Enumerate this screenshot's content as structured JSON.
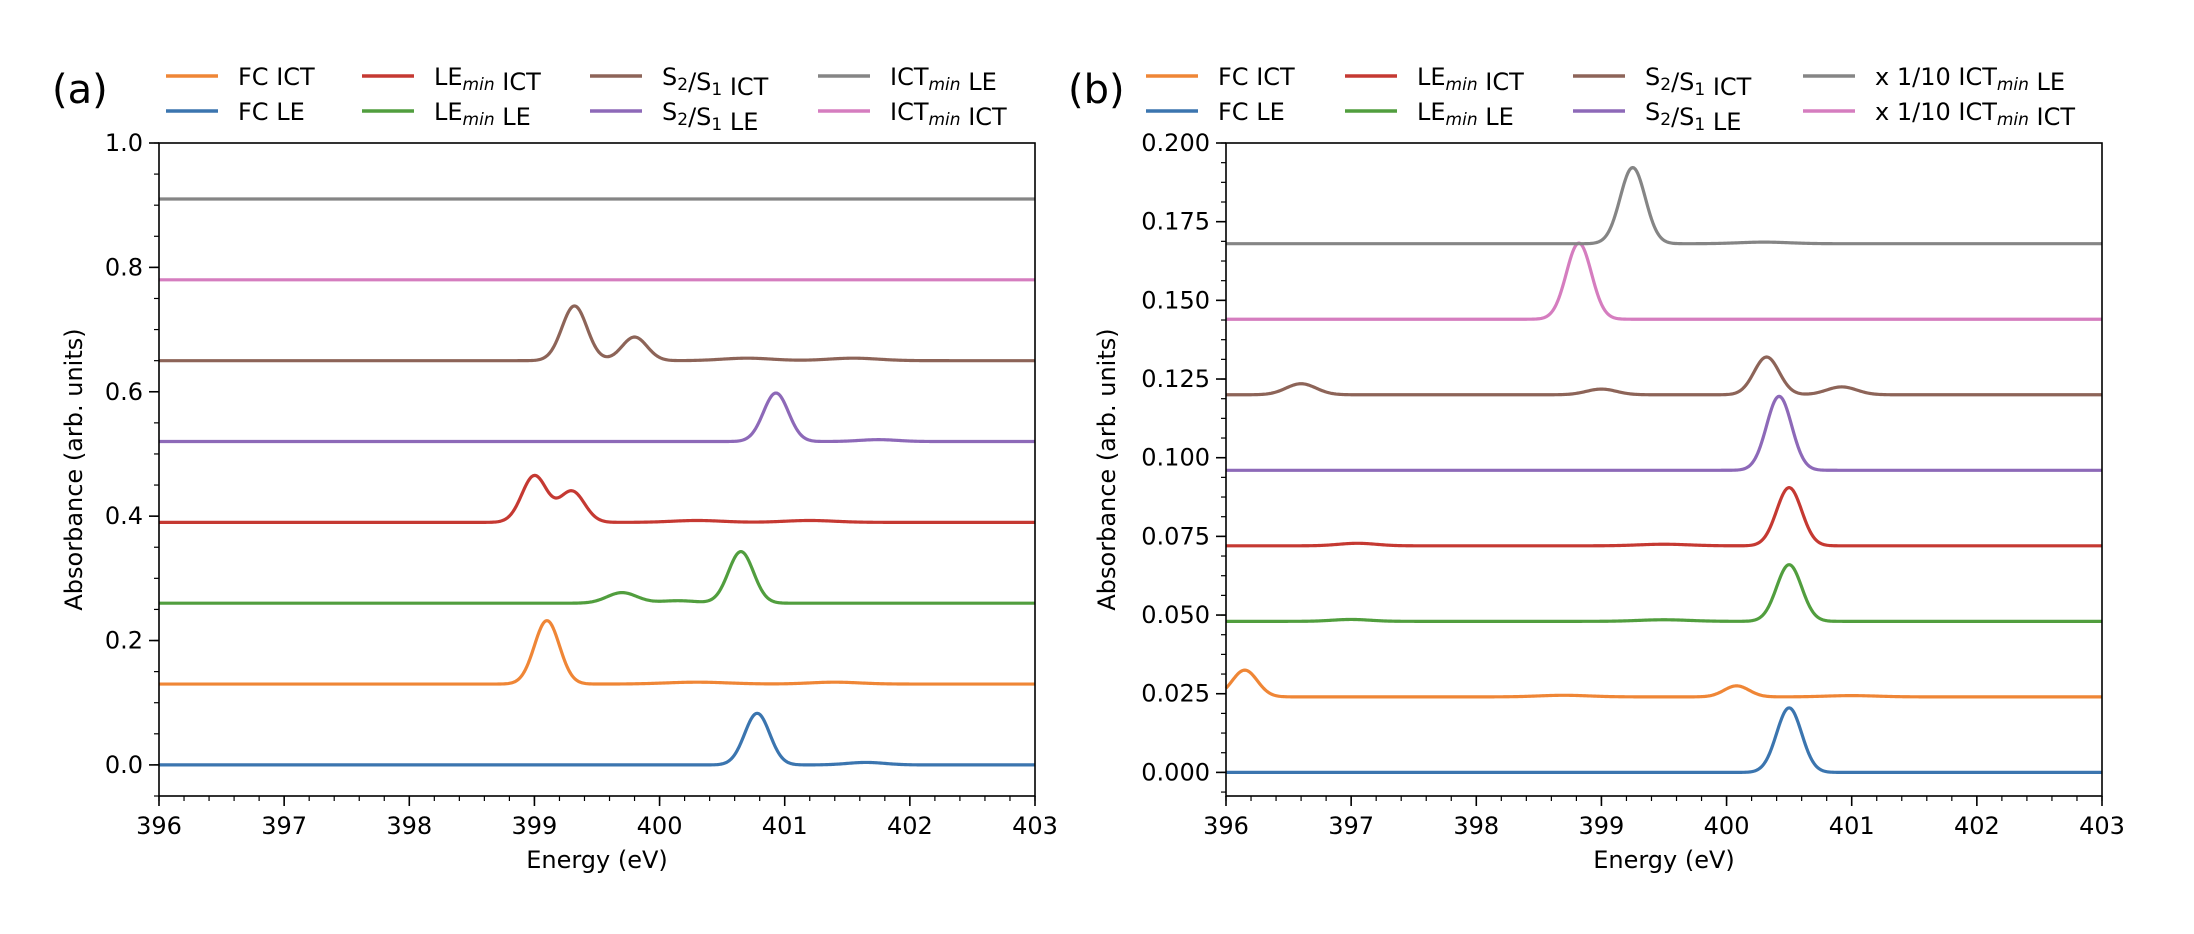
{
  "figure": {
    "colors": {
      "FC ICT": "#ef8636",
      "FC LE": "#3b75af",
      "LEmin ICT": "#c53932",
      "LEmin LE": "#519e3e",
      "S2/S1 ICT": "#8d6458",
      "S2/S1 LE": "#8d69b8",
      "ICTmin LE": "#858585",
      "ICTmin ICT": "#d57dbf"
    }
  },
  "chart_data": [
    {
      "type": "line",
      "panel_label": "(a)",
      "xlabel": "Energy (eV)",
      "ylabel": "Absorbance (arb. units)",
      "xlim": [
        396,
        403
      ],
      "ylim": [
        -0.05,
        1.0
      ],
      "x_ticks": [
        396,
        397,
        398,
        399,
        400,
        401,
        402,
        403
      ],
      "x_tick_labels": [
        "396",
        "397",
        "398",
        "399",
        "400",
        "401",
        "402",
        "403"
      ],
      "y_ticks": [
        0.0,
        0.2,
        0.4,
        0.6,
        0.8,
        1.0
      ],
      "y_tick_labels": [
        "0.0",
        "0.2",
        "0.4",
        "0.6",
        "0.8",
        "1.0"
      ],
      "legend": [
        {
          "key": "FC ICT",
          "text": "FC ICT"
        },
        {
          "key": "LEmin ICT",
          "text": "LEmin ICT"
        },
        {
          "key": "S2/S1 ICT",
          "text": "S2/S1 ICT"
        },
        {
          "key": "ICTmin LE",
          "text": "ICTmin LE"
        },
        {
          "key": "FC LE",
          "text": "FC LE"
        },
        {
          "key": "LEmin LE",
          "text": "LEmin LE"
        },
        {
          "key": "S2/S1 LE",
          "text": "S2/S1 LE"
        },
        {
          "key": "ICTmin ICT",
          "text": "ICTmin ICT"
        }
      ],
      "series": [
        {
          "name": "FC LE",
          "baseline": 0.0,
          "peaks": [
            [
              400.78,
              0.083,
              0.1
            ],
            [
              401.65,
              0.004,
              0.15
            ]
          ]
        },
        {
          "name": "FC ICT",
          "baseline": 0.13,
          "peaks": [
            [
              399.1,
              0.102,
              0.1
            ],
            [
              400.3,
              0.003,
              0.25
            ],
            [
              401.4,
              0.003,
              0.2
            ]
          ]
        },
        {
          "name": "LEmin LE",
          "baseline": 0.26,
          "peaks": [
            [
              399.7,
              0.017,
              0.12
            ],
            [
              400.15,
              0.004,
              0.15
            ],
            [
              400.65,
              0.083,
              0.1
            ]
          ]
        },
        {
          "name": "LEmin ICT",
          "baseline": 0.39,
          "peaks": [
            [
              399.0,
              0.075,
              0.1
            ],
            [
              399.3,
              0.05,
              0.1
            ],
            [
              400.3,
              0.003,
              0.2
            ],
            [
              401.2,
              0.003,
              0.2
            ]
          ]
        },
        {
          "name": "S2/S1 LE",
          "baseline": 0.52,
          "peaks": [
            [
              400.93,
              0.078,
              0.1
            ],
            [
              401.75,
              0.003,
              0.15
            ]
          ]
        },
        {
          "name": "S2/S1 ICT",
          "baseline": 0.65,
          "peaks": [
            [
              399.32,
              0.088,
              0.1
            ],
            [
              399.8,
              0.038,
              0.1
            ],
            [
              400.7,
              0.004,
              0.2
            ],
            [
              401.55,
              0.004,
              0.2
            ]
          ]
        },
        {
          "name": "ICTmin ICT",
          "baseline": 0.78,
          "peaks": []
        },
        {
          "name": "ICTmin LE",
          "baseline": 0.91,
          "peaks": []
        }
      ]
    },
    {
      "type": "line",
      "panel_label": "(b)",
      "xlabel": "Energy (eV)",
      "ylabel": "Absorbance (arb. units)",
      "xlim": [
        396,
        403
      ],
      "ylim": [
        -0.0075,
        0.2
      ],
      "x_ticks": [
        396,
        397,
        398,
        399,
        400,
        401,
        402,
        403
      ],
      "x_tick_labels": [
        "396",
        "397",
        "398",
        "399",
        "400",
        "401",
        "402",
        "403"
      ],
      "y_ticks": [
        0.0,
        0.025,
        0.05,
        0.075,
        0.1,
        0.125,
        0.15,
        0.175,
        0.2
      ],
      "y_tick_labels": [
        "0.000",
        "0.025",
        "0.050",
        "0.075",
        "0.100",
        "0.125",
        "0.150",
        "0.175",
        "0.200"
      ],
      "legend": [
        {
          "key": "FC ICT",
          "text": "FC ICT"
        },
        {
          "key": "LEmin ICT",
          "text": "LEmin ICT"
        },
        {
          "key": "S2/S1 ICT",
          "text": "S2/S1 ICT"
        },
        {
          "key": "ICTmin LE",
          "text": "x 1/10 ICTmin LE"
        },
        {
          "key": "FC LE",
          "text": "FC LE"
        },
        {
          "key": "LEmin LE",
          "text": "LEmin LE"
        },
        {
          "key": "S2/S1 LE",
          "text": "S2/S1 LE"
        },
        {
          "key": "ICTmin ICT",
          "text": "x 1/10 ICTmin ICT"
        }
      ],
      "series": [
        {
          "name": "FC LE",
          "baseline": 0.0,
          "peaks": [
            [
              400.5,
              0.0205,
              0.1
            ]
          ]
        },
        {
          "name": "FC ICT",
          "baseline": 0.024,
          "peaks": [
            [
              396.15,
              0.0085,
              0.1
            ],
            [
              398.7,
              0.0005,
              0.2
            ],
            [
              400.08,
              0.0035,
              0.1
            ],
            [
              401.0,
              0.0004,
              0.2
            ]
          ]
        },
        {
          "name": "LEmin LE",
          "baseline": 0.048,
          "peaks": [
            [
              397.0,
              0.0006,
              0.15
            ],
            [
              399.5,
              0.0005,
              0.2
            ],
            [
              400.5,
              0.018,
              0.1
            ]
          ]
        },
        {
          "name": "LEmin ICT",
          "baseline": 0.072,
          "peaks": [
            [
              397.05,
              0.0008,
              0.15
            ],
            [
              399.5,
              0.0005,
              0.2
            ],
            [
              400.5,
              0.0185,
              0.1
            ]
          ]
        },
        {
          "name": "S2/S1 LE",
          "baseline": 0.096,
          "peaks": [
            [
              400.42,
              0.0235,
              0.1
            ]
          ]
        },
        {
          "name": "S2/S1 ICT",
          "baseline": 0.12,
          "peaks": [
            [
              396.6,
              0.0035,
              0.12
            ],
            [
              399.0,
              0.0018,
              0.12
            ],
            [
              400.32,
              0.012,
              0.1
            ],
            [
              400.92,
              0.0025,
              0.12
            ]
          ]
        },
        {
          "name": "ICTmin ICT",
          "baseline": 0.144,
          "peaks": [
            [
              398.82,
              0.0242,
              0.1
            ]
          ]
        },
        {
          "name": "ICTmin LE",
          "baseline": 0.168,
          "peaks": [
            [
              399.25,
              0.0242,
              0.1
            ],
            [
              400.3,
              0.0005,
              0.2
            ]
          ]
        }
      ]
    }
  ]
}
